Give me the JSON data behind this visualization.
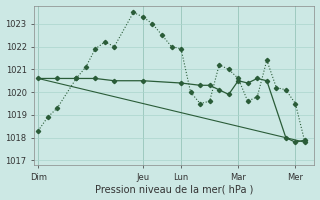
{
  "xlabel": "Pression niveau de la mer( hPa )",
  "bg_color": "#cce8e4",
  "grid_color": "#aad4cc",
  "line_color": "#2a5c38",
  "ylim_min": 1016.8,
  "ylim_max": 1023.8,
  "yticks": [
    1017,
    1018,
    1019,
    1020,
    1021,
    1022,
    1023
  ],
  "day_labels": [
    "Dim",
    "Jeu",
    "Lun",
    "Mar",
    "Mer"
  ],
  "day_x": [
    0.0,
    5.5,
    7.5,
    10.5,
    13.5
  ],
  "xlim_min": -0.2,
  "xlim_max": 14.5,
  "line1_x": [
    0.0,
    0.5,
    1.0,
    2.0,
    2.5,
    3.0,
    3.5,
    4.0,
    5.0,
    5.5,
    6.0,
    6.5,
    7.0,
    7.5,
    8.0,
    8.5,
    9.0,
    9.5,
    10.0,
    10.5,
    11.0,
    11.5,
    12.0,
    12.5,
    13.0,
    13.5,
    14.0
  ],
  "line1_y": [
    1018.3,
    1018.9,
    1019.3,
    1020.6,
    1021.1,
    1021.9,
    1022.2,
    1022.0,
    1023.5,
    1023.3,
    1023.0,
    1022.5,
    1022.0,
    1021.9,
    1020.0,
    1019.5,
    1019.6,
    1021.2,
    1021.0,
    1020.6,
    1019.6,
    1019.8,
    1021.4,
    1020.2,
    1020.1,
    1019.5,
    1017.8
  ],
  "line2_x": [
    0.0,
    1.0,
    2.0,
    3.0,
    4.0,
    5.5,
    7.5,
    8.5,
    9.0,
    9.5,
    10.0,
    10.5,
    11.0,
    11.5,
    12.0,
    13.0,
    13.5,
    14.0
  ],
  "line2_y": [
    1020.6,
    1020.6,
    1020.6,
    1020.6,
    1020.5,
    1020.5,
    1020.4,
    1020.3,
    1020.3,
    1020.1,
    1019.9,
    1020.5,
    1020.4,
    1020.6,
    1020.5,
    1018.0,
    1017.8,
    1017.9
  ],
  "line3_x": [
    0.0,
    14.0
  ],
  "line3_y": [
    1020.6,
    1017.8
  ]
}
